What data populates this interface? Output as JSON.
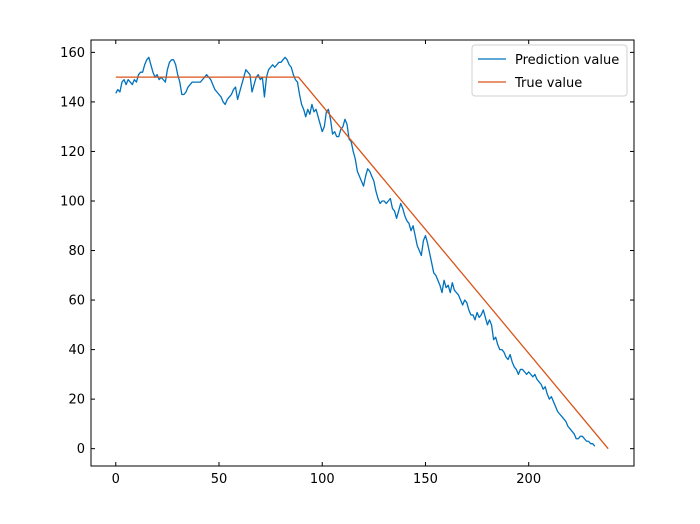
{
  "chart_data": {
    "type": "line",
    "title": "",
    "xlabel": "",
    "ylabel": "",
    "xlim": [
      -12,
      251
    ],
    "ylim": [
      -7,
      165
    ],
    "xticks": [
      0,
      50,
      100,
      150,
      200
    ],
    "yticks": [
      0,
      20,
      40,
      60,
      80,
      100,
      120,
      140,
      160
    ],
    "tick_direction": "in",
    "grid": false,
    "legend_position": "top-right",
    "series": [
      {
        "name": "Prediction value",
        "color": "#0072BD",
        "x_start": 0,
        "x_step": 1,
        "values": [
          143.5,
          145,
          144,
          148,
          149,
          147,
          149,
          148,
          147,
          149,
          148,
          151,
          152,
          152,
          155,
          157,
          158,
          155,
          152,
          150,
          151,
          149,
          150,
          149,
          148,
          153,
          156,
          157,
          157,
          155,
          151,
          148,
          143,
          143,
          144,
          146,
          147,
          148,
          148,
          148,
          148,
          148,
          149,
          150,
          151,
          150,
          149,
          147,
          145,
          144,
          143,
          142,
          140,
          139,
          141,
          142,
          143,
          145,
          146,
          141,
          144,
          147,
          150,
          153,
          152,
          151,
          144,
          147,
          150,
          151,
          149,
          150,
          142,
          150,
          153,
          154,
          155,
          154,
          155,
          156,
          156,
          157,
          158,
          157,
          155,
          154,
          151,
          149,
          148,
          143,
          139,
          137,
          134,
          137,
          135,
          139,
          136,
          137,
          134,
          131,
          128,
          130,
          136,
          137,
          133,
          127,
          128,
          126,
          126,
          129,
          130,
          133,
          131,
          125,
          124,
          120,
          117,
          112,
          110,
          108,
          106,
          110,
          113,
          112,
          110,
          108,
          104,
          101,
          99,
          100,
          100,
          99,
          100,
          101,
          97,
          96,
          93,
          96,
          99,
          97,
          94,
          92,
          91,
          88,
          90,
          86,
          82,
          80,
          78,
          84,
          86,
          83,
          79,
          75,
          71,
          70,
          68,
          66,
          63,
          68,
          65,
          66,
          63,
          67,
          64,
          63,
          62,
          60,
          58,
          60,
          59,
          56,
          54,
          54,
          52,
          55,
          53,
          54,
          56,
          53,
          50,
          52,
          50,
          44,
          45,
          42,
          40,
          40,
          39,
          37,
          36,
          38,
          35,
          33,
          32,
          30,
          32,
          32,
          31,
          30,
          31,
          30,
          29,
          30,
          28,
          27,
          26,
          24,
          25,
          22,
          20,
          21,
          19,
          17,
          15,
          14,
          13,
          12,
          11,
          9,
          8,
          7,
          6,
          4,
          4,
          5,
          5,
          4,
          3,
          3,
          2,
          2,
          1
        ]
      },
      {
        "name": "True value",
        "color": "#D95319",
        "points": [
          [
            0,
            150
          ],
          [
            88.5,
            150
          ],
          [
            238.5,
            0
          ]
        ]
      }
    ]
  }
}
